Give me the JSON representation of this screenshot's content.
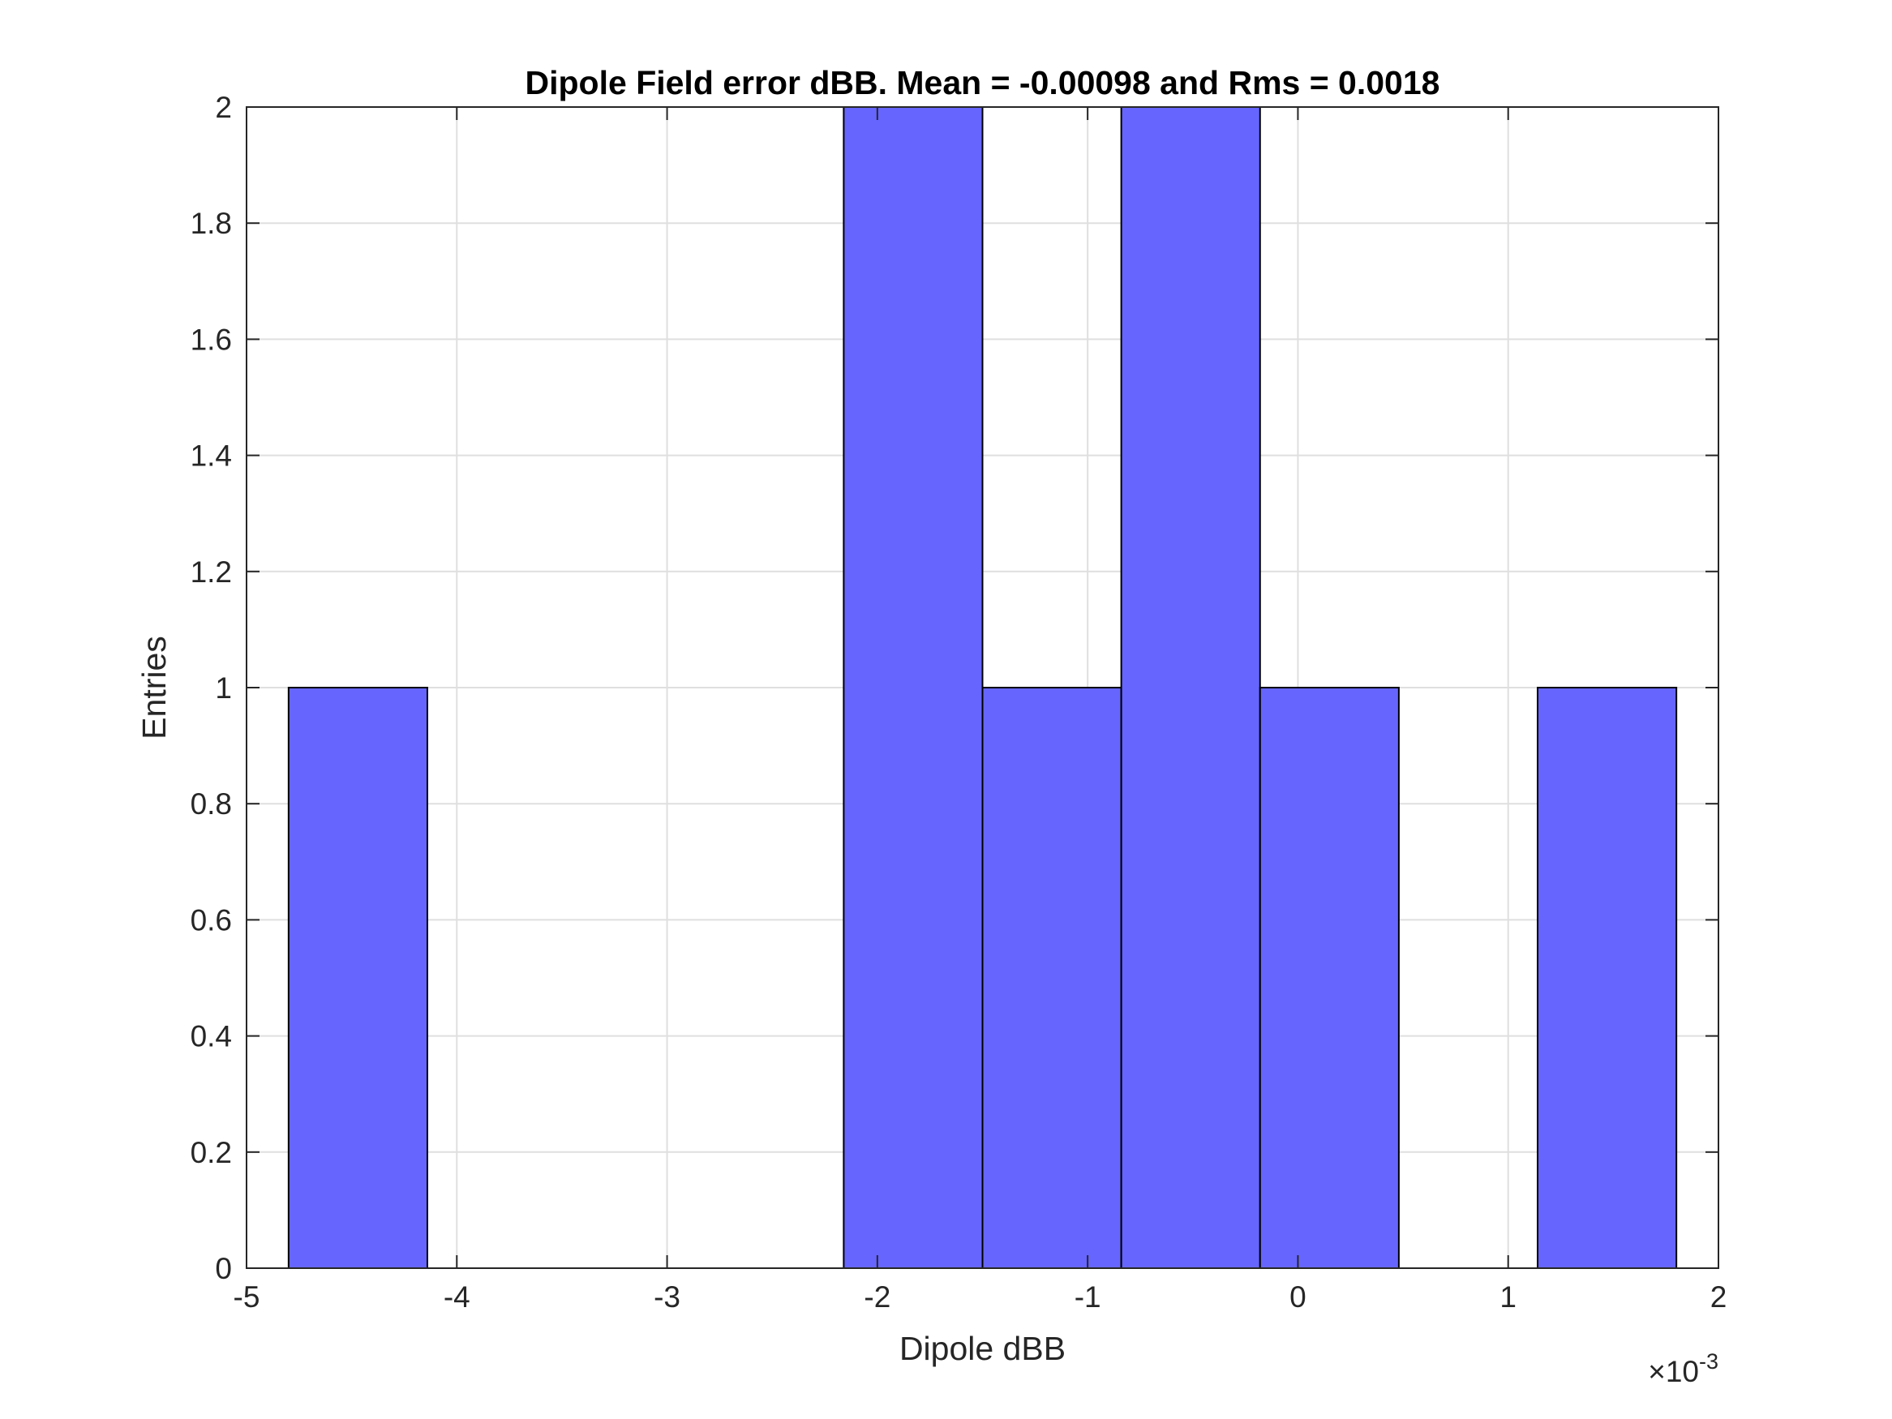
{
  "chart_data": {
    "type": "bar",
    "title": "Dipole Field error dBB. Mean = -0.00098 and Rms = 0.0018",
    "xlabel": "Dipole dBB",
    "ylabel": "Entries",
    "x_exponent_label": {
      "times": "×10",
      "power": "-3"
    },
    "xlim": [
      -5,
      2
    ],
    "ylim": [
      0,
      2
    ],
    "xticks": [
      "-5",
      "-4",
      "-3",
      "-2",
      "-1",
      "0",
      "1",
      "2"
    ],
    "yticks": [
      "0",
      "0.2",
      "0.4",
      "0.6",
      "0.8",
      "1",
      "1.2",
      "1.4",
      "1.6",
      "1.8",
      "2"
    ],
    "grid": true,
    "bin_width": 0.66,
    "bins": [
      {
        "from": -4.8,
        "to": -4.14,
        "count": 1
      },
      {
        "from": -4.14,
        "to": -3.48,
        "count": 0
      },
      {
        "from": -3.48,
        "to": -2.82,
        "count": 0
      },
      {
        "from": -2.82,
        "to": -2.16,
        "count": 0
      },
      {
        "from": -2.16,
        "to": -1.5,
        "count": 2
      },
      {
        "from": -1.5,
        "to": -0.84,
        "count": 1
      },
      {
        "from": -0.84,
        "to": -0.18,
        "count": 2
      },
      {
        "from": -0.18,
        "to": 0.48,
        "count": 1
      },
      {
        "from": 0.48,
        "to": 1.14,
        "count": 0
      },
      {
        "from": 1.14,
        "to": 1.8,
        "count": 1
      }
    ],
    "colors": {
      "bar_fill": "#6666ff",
      "bar_edge": "#000000",
      "grid": "#dfdfdf",
      "axes": "#262626"
    }
  }
}
